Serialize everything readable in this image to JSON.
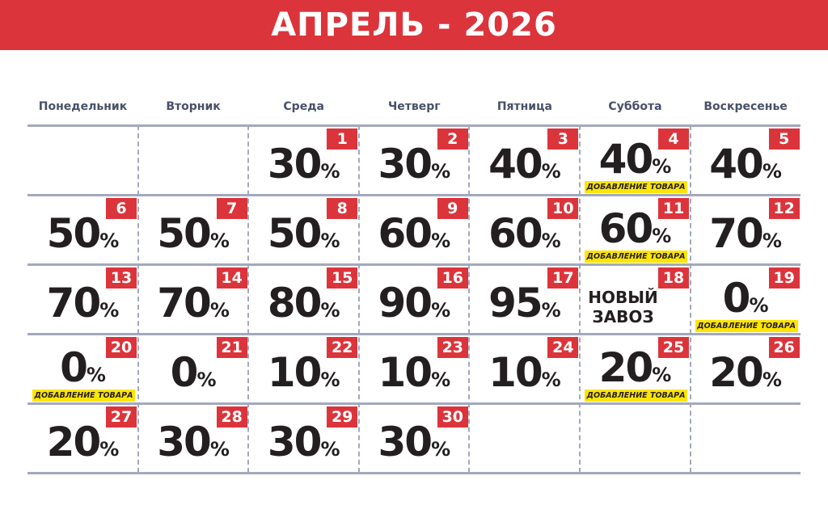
{
  "title": "АПРЕЛЬ - 2026",
  "weekdays": [
    "Понедельник",
    "Вторник",
    "Среда",
    "Четверг",
    "Пятница",
    "Суббота",
    "Воскресенье"
  ],
  "colors": {
    "accent": "#dc343b",
    "note": "#ffe500",
    "grid": "#a3a8bd",
    "text": "#231f20"
  },
  "first_weekday_index": 2,
  "days": [
    {
      "day": "1",
      "value": "30",
      "unit": "%"
    },
    {
      "day": "2",
      "value": "30",
      "unit": "%"
    },
    {
      "day": "3",
      "value": "40",
      "unit": "%"
    },
    {
      "day": "4",
      "value": "40",
      "unit": "%",
      "note": "ДОБАВЛЕНИЕ ТОВАРА"
    },
    {
      "day": "5",
      "value": "40",
      "unit": "%"
    },
    {
      "day": "6",
      "value": "50",
      "unit": "%"
    },
    {
      "day": "7",
      "value": "50",
      "unit": "%"
    },
    {
      "day": "8",
      "value": "50",
      "unit": "%"
    },
    {
      "day": "9",
      "value": "60",
      "unit": "%"
    },
    {
      "day": "10",
      "value": "60",
      "unit": "%"
    },
    {
      "day": "11",
      "value": "60",
      "unit": "%",
      "note": "ДОБАВЛЕНИЕ ТОВАРА"
    },
    {
      "day": "12",
      "value": "70",
      "unit": "%"
    },
    {
      "day": "13",
      "value": "70",
      "unit": "%"
    },
    {
      "day": "14",
      "value": "70",
      "unit": "%"
    },
    {
      "day": "15",
      "value": "80",
      "unit": "%"
    },
    {
      "day": "16",
      "value": "90",
      "unit": "%"
    },
    {
      "day": "17",
      "value": "95",
      "unit": "%"
    },
    {
      "day": "18",
      "text": "НОВЫЙ ЗАВОЗ"
    },
    {
      "day": "19",
      "value": "0",
      "unit": "%",
      "note": "ДОБАВЛЕНИЕ ТОВАРА"
    },
    {
      "day": "20",
      "value": "0",
      "unit": "%",
      "note": "ДОБАВЛЕНИЕ ТОВАРА"
    },
    {
      "day": "21",
      "value": "0",
      "unit": "%"
    },
    {
      "day": "22",
      "value": "10",
      "unit": "%"
    },
    {
      "day": "23",
      "value": "10",
      "unit": "%"
    },
    {
      "day": "24",
      "value": "10",
      "unit": "%"
    },
    {
      "day": "25",
      "value": "20",
      "unit": "%",
      "note": "ДОБАВЛЕНИЕ ТОВАРА"
    },
    {
      "day": "26",
      "value": "20",
      "unit": "%"
    },
    {
      "day": "27",
      "value": "20",
      "unit": "%"
    },
    {
      "day": "28",
      "value": "30",
      "unit": "%"
    },
    {
      "day": "29",
      "value": "30",
      "unit": "%"
    },
    {
      "day": "30",
      "value": "30",
      "unit": "%"
    }
  ]
}
